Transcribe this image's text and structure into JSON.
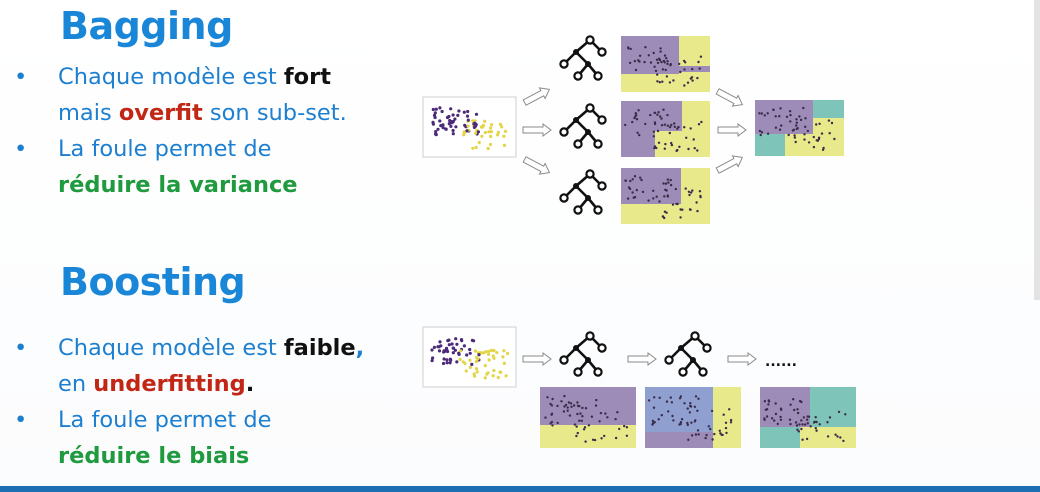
{
  "bagging": {
    "title": "Bagging",
    "b1_pre": "Chaque modèle est ",
    "b1_strong": "fort",
    "b1_mid": "mais ",
    "b1_red": "overfit",
    "b1_post": " son sub-set.",
    "b2_pre": "La foule permet de",
    "b2_green": "réduire la variance"
  },
  "boosting": {
    "title": "Boosting",
    "b1_pre": "Chaque modèle est ",
    "b1_strong": "faible",
    "b1_comma": ",",
    "b1_mid": "en ",
    "b1_red": "underfitting",
    "b1_period": ".",
    "b2_pre": "La foule permet de",
    "b2_green": "réduire le biais",
    "ellipsis": "......"
  },
  "colors": {
    "title": "#1a86d8",
    "text": "#1d7fd0",
    "red": "#c22716",
    "green": "#1f9a3e",
    "purple_region": "#9e8cb8",
    "yellow_region": "#e7e98a",
    "teal_region": "#7fc4b8",
    "blue_region": "#8f9fd0"
  }
}
